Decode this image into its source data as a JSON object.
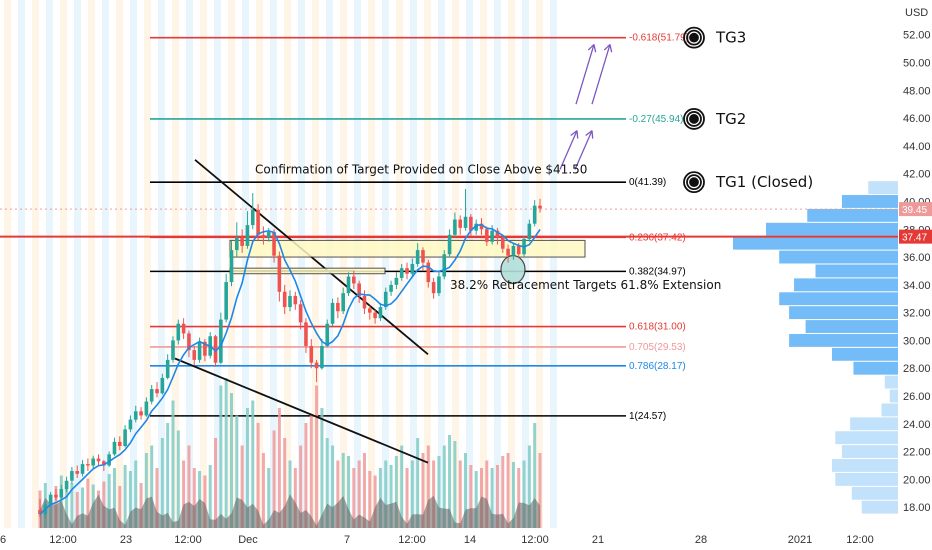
{
  "chart_data": {
    "type": "candlestick",
    "currency_label": "USD",
    "y_ticks": [
      "52.00",
      "50.00",
      "48.00",
      "46.00",
      "44.00",
      "42.00",
      "40.00",
      "38.00",
      "36.00",
      "34.00",
      "32.00",
      "30.00",
      "28.00",
      "26.00",
      "24.00",
      "22.00",
      "20.00",
      "18.00"
    ],
    "x_ticks": [
      "6",
      "12:00",
      "23",
      "12:00",
      "Dec",
      "7",
      "12:00",
      "14",
      "12:00",
      "21",
      "28",
      "2021",
      "12:00"
    ],
    "ylim": [
      16.5,
      54.5
    ],
    "current_price": "39.45",
    "marked_price": "37.47",
    "fib_levels": [
      {
        "label": "-0.618(51.79)",
        "value": 51.79,
        "color": "#e53935"
      },
      {
        "label": "-0.27(45.94)",
        "value": 45.94,
        "color": "#26a69a"
      },
      {
        "label": "0(41.39)",
        "value": 41.39,
        "color": "#000000"
      },
      {
        "label": "0.236(37.42)",
        "value": 37.42,
        "color": "#e53935"
      },
      {
        "label": "0.382(34.97)",
        "value": 34.97,
        "color": "#000000"
      },
      {
        "label": "0.618(31.00)",
        "value": 31.0,
        "color": "#e53935"
      },
      {
        "label": "0.705(29.53)",
        "value": 29.53,
        "color": "#ef9a9a"
      },
      {
        "label": "0.786(28.17)",
        "value": 28.17,
        "color": "#1e88e5"
      },
      {
        "label": "1(24.57)",
        "value": 24.57,
        "color": "#000000"
      }
    ],
    "targets": [
      {
        "label": "TG3",
        "value": 51.79
      },
      {
        "label": "TG2",
        "value": 45.94
      },
      {
        "label": "TG1 (Closed)",
        "value": 41.39
      }
    ],
    "annotations": [
      "Confirmation of Target Provided on Close Above $41.50",
      "38.2% Retracement Targets 61.8% Extension"
    ],
    "volume_profile": [
      {
        "price": 41.0,
        "size": 0.18
      },
      {
        "price": 40.0,
        "size": 0.34
      },
      {
        "price": 39.0,
        "size": 0.55
      },
      {
        "price": 38.0,
        "size": 0.8
      },
      {
        "price": 37.0,
        "size": 1.0
      },
      {
        "price": 36.0,
        "size": 0.72
      },
      {
        "price": 35.0,
        "size": 0.5
      },
      {
        "price": 34.0,
        "size": 0.63
      },
      {
        "price": 33.0,
        "size": 0.72
      },
      {
        "price": 32.0,
        "size": 0.66
      },
      {
        "price": 31.0,
        "size": 0.56
      },
      {
        "price": 30.0,
        "size": 0.66
      },
      {
        "price": 29.0,
        "size": 0.4
      },
      {
        "price": 28.0,
        "size": 0.27
      },
      {
        "price": 27.0,
        "size": 0.08
      },
      {
        "price": 26.0,
        "size": 0.05
      },
      {
        "price": 25.0,
        "size": 0.1
      },
      {
        "price": 24.0,
        "size": 0.29
      },
      {
        "price": 23.0,
        "size": 0.38
      },
      {
        "price": 22.0,
        "size": 0.34
      },
      {
        "price": 21.0,
        "size": 0.4
      },
      {
        "price": 20.0,
        "size": 0.38
      },
      {
        "price": 19.0,
        "size": 0.28
      },
      {
        "price": 18.0,
        "size": 0.22
      }
    ],
    "candles": [
      [
        17.8,
        17.5,
        18.6,
        17.3
      ],
      [
        17.5,
        18.2,
        18.4,
        17.2
      ],
      [
        18.2,
        18.9,
        19.1,
        18.0
      ],
      [
        18.9,
        18.7,
        19.3,
        18.5
      ],
      [
        18.7,
        19.3,
        19.6,
        18.6
      ],
      [
        19.3,
        19.9,
        20.2,
        19.1
      ],
      [
        19.9,
        20.6,
        20.9,
        19.7
      ],
      [
        20.6,
        20.4,
        21.0,
        20.1
      ],
      [
        20.4,
        21.1,
        21.4,
        20.2
      ],
      [
        21.1,
        21.0,
        21.5,
        20.6
      ],
      [
        21.0,
        21.5,
        21.7,
        20.8
      ],
      [
        21.5,
        21.3,
        21.8,
        21.0
      ],
      [
        21.3,
        21.0,
        21.4,
        20.6
      ],
      [
        21.0,
        21.8,
        22.0,
        20.9
      ],
      [
        21.8,
        22.7,
        23.0,
        21.7
      ],
      [
        22.7,
        22.4,
        23.1,
        22.1
      ],
      [
        22.4,
        23.6,
        23.9,
        22.3
      ],
      [
        23.6,
        24.3,
        24.6,
        23.4
      ],
      [
        24.3,
        24.9,
        25.3,
        24.1
      ],
      [
        24.9,
        24.6,
        25.2,
        24.3
      ],
      [
        24.6,
        25.6,
        25.9,
        24.5
      ],
      [
        25.6,
        26.5,
        26.8,
        25.4
      ],
      [
        26.5,
        26.2,
        27.0,
        25.9
      ],
      [
        26.2,
        27.3,
        27.6,
        26.1
      ],
      [
        27.3,
        28.6,
        29.0,
        27.2
      ],
      [
        28.6,
        30.0,
        30.3,
        28.4
      ],
      [
        30.0,
        31.2,
        31.5,
        29.7
      ],
      [
        31.2,
        30.5,
        31.6,
        30.1
      ],
      [
        30.5,
        29.3,
        30.7,
        28.8
      ],
      [
        29.3,
        28.6,
        29.6,
        28.2
      ],
      [
        28.6,
        29.9,
        30.2,
        28.4
      ],
      [
        29.9,
        28.9,
        30.1,
        28.5
      ],
      [
        28.9,
        30.3,
        30.6,
        28.7
      ],
      [
        30.3,
        28.4,
        30.4,
        28.1
      ],
      [
        28.4,
        31.5,
        32.0,
        28.3
      ],
      [
        31.5,
        34.2,
        34.8,
        31.3
      ],
      [
        34.2,
        36.5,
        37.2,
        33.9
      ],
      [
        36.5,
        37.4,
        38.5,
        36.0
      ],
      [
        37.4,
        36.8,
        38.0,
        36.3
      ],
      [
        36.8,
        38.3,
        39.3,
        36.6
      ],
      [
        38.3,
        39.4,
        40.6,
        38.0
      ],
      [
        39.4,
        37.6,
        39.8,
        37.2
      ],
      [
        37.6,
        37.4,
        38.2,
        36.9
      ],
      [
        37.4,
        37.8,
        38.1,
        37.1
      ],
      [
        37.8,
        36.1,
        38.0,
        35.6
      ],
      [
        36.1,
        33.5,
        36.4,
        32.8
      ],
      [
        33.5,
        32.4,
        34.0,
        31.9
      ],
      [
        32.4,
        33.2,
        33.6,
        32.1
      ],
      [
        33.2,
        32.6,
        33.5,
        32.2
      ],
      [
        32.6,
        31.3,
        32.9,
        30.8
      ],
      [
        31.3,
        29.6,
        31.6,
        29.1
      ],
      [
        29.6,
        28.4,
        30.1,
        28.0
      ],
      [
        28.4,
        28.0,
        28.6,
        27.0
      ],
      [
        28.0,
        29.6,
        30.1,
        27.9
      ],
      [
        29.6,
        31.2,
        31.5,
        29.5
      ],
      [
        31.2,
        32.7,
        33.0,
        31.0
      ],
      [
        32.7,
        32.1,
        33.1,
        31.6
      ],
      [
        32.1,
        33.4,
        33.8,
        31.9
      ],
      [
        33.4,
        34.6,
        34.9,
        33.2
      ],
      [
        34.6,
        34.1,
        35.0,
        33.7
      ],
      [
        34.1,
        33.2,
        34.3,
        32.7
      ],
      [
        33.2,
        32.3,
        33.6,
        31.9
      ],
      [
        32.3,
        32.0,
        32.5,
        31.5
      ],
      [
        32.0,
        31.6,
        32.2,
        31.2
      ],
      [
        31.6,
        32.4,
        32.7,
        31.4
      ],
      [
        32.4,
        33.5,
        33.8,
        32.2
      ],
      [
        33.5,
        34.0,
        34.3,
        33.2
      ],
      [
        34.0,
        34.5,
        34.9,
        33.7
      ],
      [
        34.5,
        35.2,
        35.5,
        34.3
      ],
      [
        35.2,
        34.8,
        35.6,
        34.4
      ],
      [
        34.8,
        35.5,
        35.9,
        34.6
      ],
      [
        35.5,
        36.5,
        37.0,
        35.3
      ],
      [
        36.5,
        35.6,
        36.7,
        35.0
      ],
      [
        35.6,
        34.2,
        35.8,
        33.8
      ],
      [
        34.2,
        33.4,
        34.5,
        33.0
      ],
      [
        33.4,
        34.6,
        34.9,
        33.2
      ],
      [
        34.6,
        36.2,
        36.5,
        34.4
      ],
      [
        36.2,
        37.6,
        38.0,
        36.0
      ],
      [
        37.6,
        38.7,
        39.2,
        37.4
      ],
      [
        38.7,
        38.1,
        39.0,
        37.6
      ],
      [
        38.1,
        38.9,
        40.9,
        37.9
      ],
      [
        38.9,
        37.9,
        39.1,
        37.5
      ],
      [
        37.9,
        38.4,
        38.7,
        37.6
      ],
      [
        38.4,
        38.0,
        38.8,
        37.6
      ],
      [
        38.0,
        37.1,
        38.2,
        36.8
      ],
      [
        37.1,
        37.9,
        38.3,
        36.9
      ],
      [
        37.9,
        37.4,
        38.1,
        36.9
      ],
      [
        37.4,
        36.6,
        37.6,
        36.3
      ],
      [
        36.6,
        36.1,
        36.9,
        35.6
      ],
      [
        36.1,
        36.8,
        37.0,
        35.8
      ],
      [
        36.8,
        36.2,
        37.0,
        35.9
      ],
      [
        36.2,
        37.3,
        37.5,
        36.0
      ],
      [
        37.3,
        38.4,
        38.7,
        37.1
      ],
      [
        38.4,
        39.7,
        40.1,
        38.2
      ],
      [
        39.7,
        39.5,
        40.2,
        39.2
      ]
    ],
    "volume": [
      0.25,
      0.3,
      0.22,
      0.28,
      0.35,
      0.26,
      0.3,
      0.24,
      0.27,
      0.33,
      0.29,
      0.25,
      0.31,
      0.36,
      0.4,
      0.28,
      0.42,
      0.38,
      0.45,
      0.3,
      0.5,
      0.55,
      0.4,
      0.6,
      0.7,
      0.85,
      0.65,
      0.45,
      0.55,
      0.4,
      0.38,
      0.35,
      0.42,
      0.6,
      0.95,
      1.0,
      0.9,
      0.75,
      0.55,
      0.8,
      0.85,
      0.7,
      0.5,
      0.4,
      0.65,
      0.8,
      0.6,
      0.45,
      0.4,
      0.55,
      0.7,
      0.75,
      0.95,
      0.8,
      0.6,
      0.55,
      0.45,
      0.5,
      0.48,
      0.4,
      0.45,
      0.5,
      0.38,
      0.35,
      0.4,
      0.45,
      0.42,
      0.48,
      0.55,
      0.4,
      0.45,
      0.6,
      0.5,
      0.55,
      0.45,
      0.48,
      0.55,
      0.62,
      0.58,
      0.45,
      0.5,
      0.42,
      0.38,
      0.4,
      0.45,
      0.4,
      0.42,
      0.48,
      0.5,
      0.44,
      0.4,
      0.45,
      0.55,
      0.7,
      0.5
    ]
  }
}
